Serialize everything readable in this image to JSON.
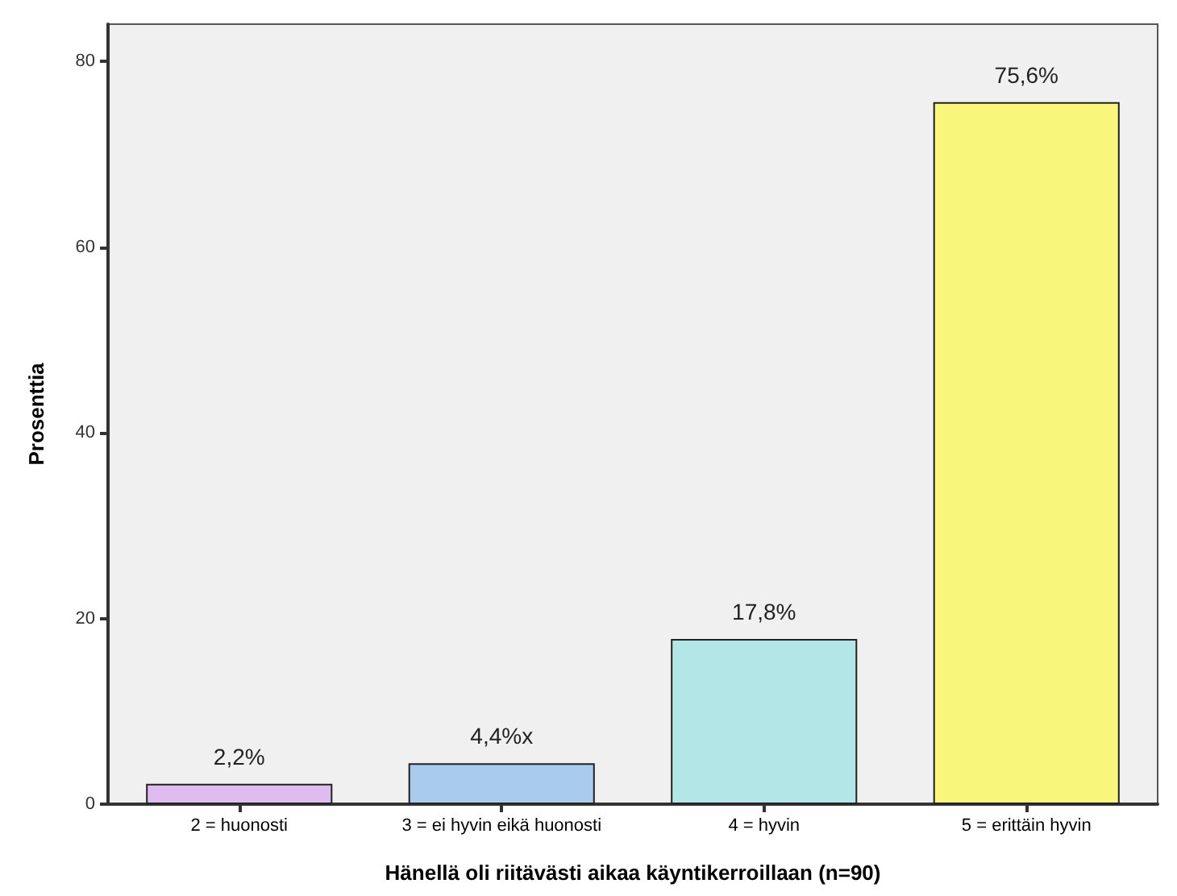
{
  "chart_data": {
    "type": "bar",
    "xlabel": "Hänellä oli riitävästi aikaa käyntikerroillaan (n=90)",
    "ylabel": "Prosenttia",
    "categories": [
      "2 = huonosti",
      "3 = ei hyvin eikä huonosti",
      "4 = hyvin",
      "5 = erittäin hyvin"
    ],
    "values": [
      2.2,
      4.4,
      17.8,
      75.6
    ],
    "value_labels": [
      "2,2%",
      "4,4%x",
      "17,8%",
      "75,6%"
    ],
    "colors": [
      "#dfbbf0",
      "#a9cbee",
      "#b3e6e6",
      "#f9f77b"
    ],
    "ylim": [
      0,
      84
    ],
    "yticks": [
      0,
      20,
      40,
      60,
      80
    ],
    "grid": false
  }
}
